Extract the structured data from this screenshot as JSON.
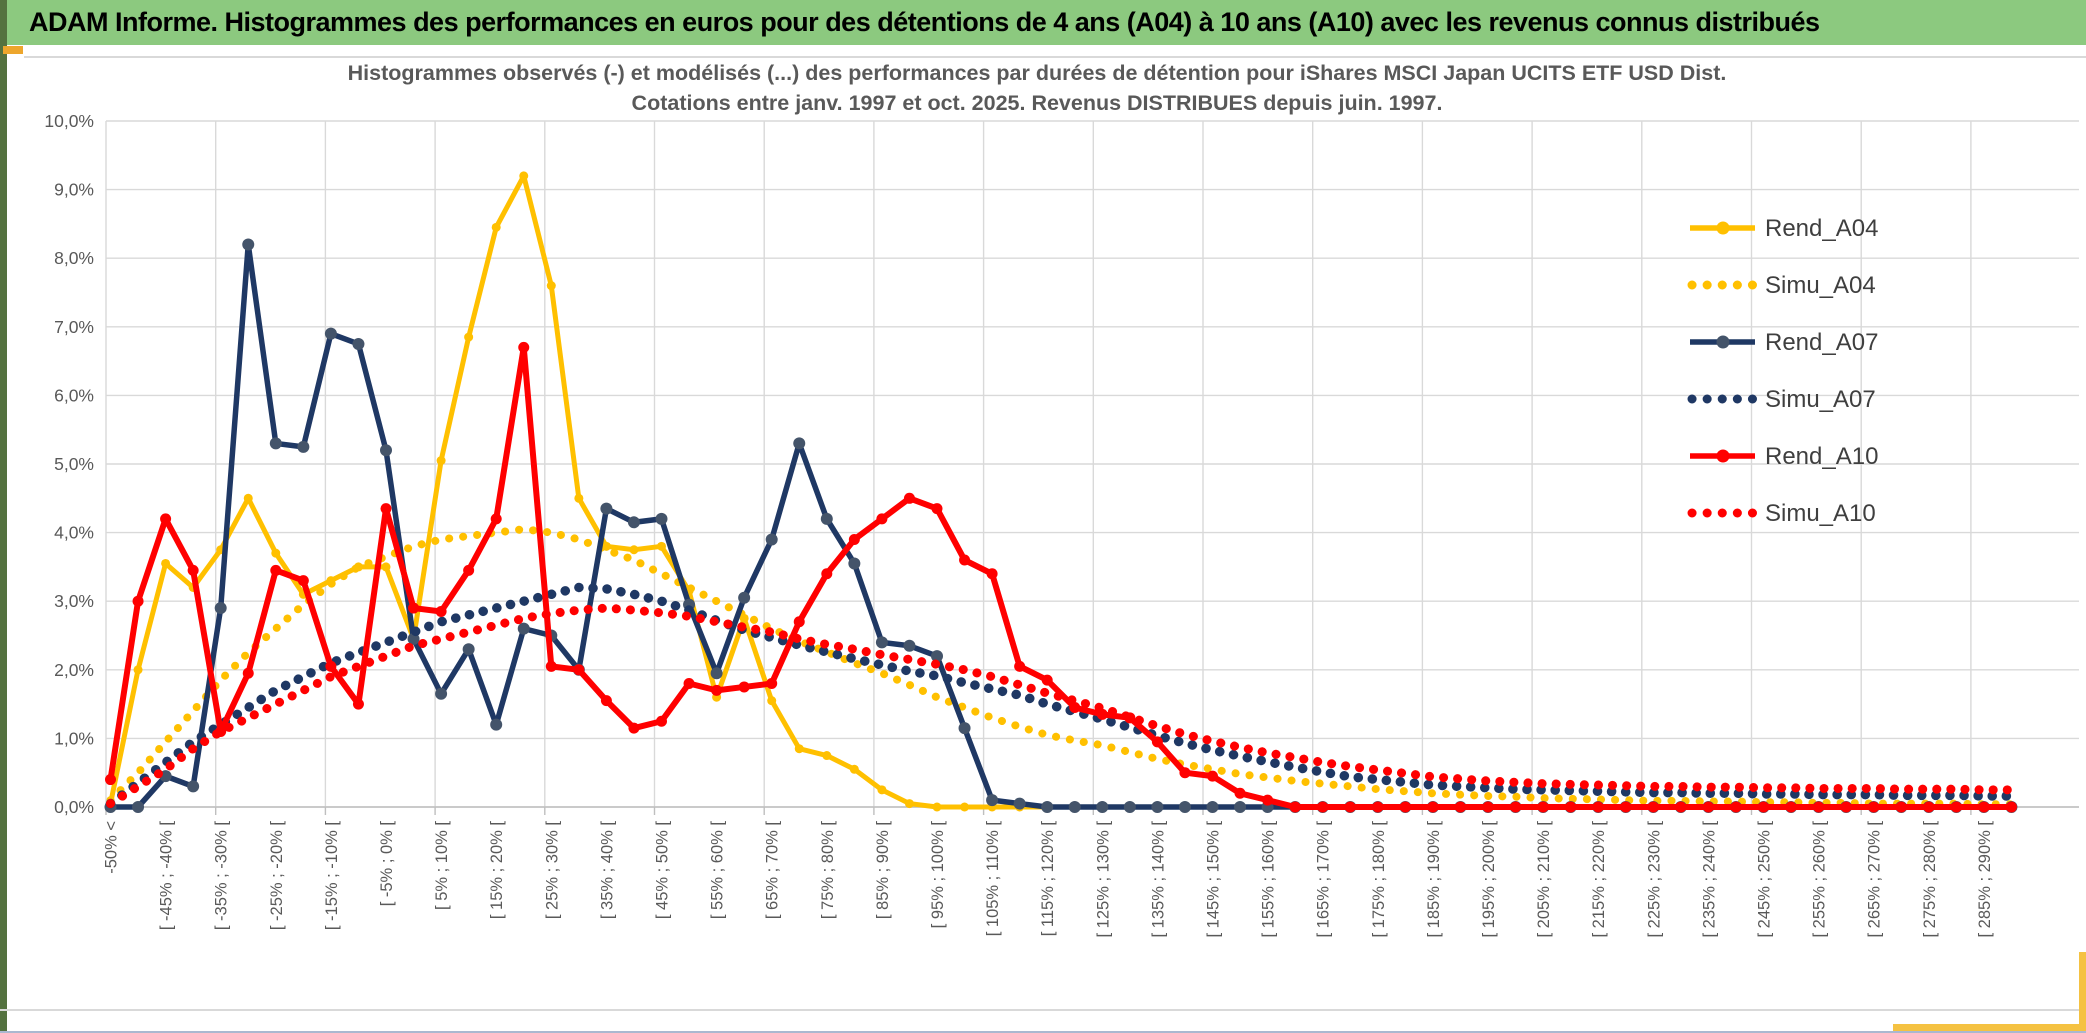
{
  "banner": {
    "title": "ADAM Informe. Histogrammes des performances en euros pour des détentions de 4 ans (A04) à 10 ans (A10) avec les revenus connus distribués"
  },
  "chart_data": {
    "type": "line",
    "title_line1": "Histogrammes observés (-) et modélisés (...) des performances par durées de détention pour iShares MSCI Japan UCITS ETF USD Dist.",
    "title_line2": "Cotations entre janv. 1997 et oct. 2025. Revenus DISTRIBUES depuis juin. 1997.",
    "ylabel": "",
    "xlabel": "",
    "ylim": [
      0,
      10
    ],
    "y_tick_labels": [
      "10,0%",
      "9,0%",
      "8,0%",
      "7,0%",
      "6,0%",
      "5,0%",
      "4,0%",
      "3,0%",
      "2,0%",
      "1,0%",
      "0,0%"
    ],
    "grid": true,
    "legend_position": "right",
    "categories": [
      "-50% <",
      "",
      "[ -45% ; -40% [",
      "",
      "[ -35% ; -30% [",
      "",
      "[ -25% ; -20% [",
      "",
      "[ -15% ; -10% [",
      "",
      "[ -5% ; 0% [",
      "",
      "[ 5% ; 10% [",
      "",
      "[ 15% ; 20% [",
      "",
      "[ 25% ; 30% [",
      "",
      "[ 35% ; 40% [",
      "",
      "[ 45% ; 50% [",
      "",
      "[ 55% ; 60% [",
      "",
      "[ 65% ; 70% [",
      "",
      "[ 75% ; 80% [",
      "",
      "[ 85% ; 90% [",
      "",
      "[ 95% ; 100% [",
      "",
      "[ 105% ; 110% [",
      "",
      "[ 115% ; 120% [",
      "",
      "[ 125% ; 130% [",
      "",
      "[ 135% ; 140% [",
      "",
      "[ 145% ; 150% [",
      "",
      "[ 155% ; 160% [",
      "",
      "[ 165% ; 170% [",
      "",
      "[ 175% ; 180% [",
      "",
      "[ 185% ; 190% [",
      "",
      "[ 195% ; 200% [",
      "",
      "[ 205% ; 210% [",
      "",
      "[ 215% ; 220% [",
      "",
      "[ 225% ; 230% [",
      "",
      "[ 235% ; 240% [",
      "",
      "[ 245% ; 250% [",
      "",
      "[ 255% ; 260% [",
      "",
      "[ 265% ; 270% [",
      "",
      "[ 275% ; 280% [",
      "",
      "[ 285% ; 290% [",
      ""
    ],
    "series": [
      {
        "name": "Rend_A04",
        "style": "solid",
        "color": "#FFC000",
        "marker_color": "#FFC000",
        "line_width": 5,
        "marker_r": 4.5,
        "values": [
          0.05,
          2,
          3.55,
          3.2,
          3.75,
          4.5,
          3.7,
          3.1,
          3.3,
          3.5,
          3.5,
          2.45,
          5.05,
          6.85,
          8.45,
          9.2,
          7.6,
          4.5,
          3.8,
          3.75,
          3.8,
          3.15,
          1.6,
          2.75,
          1.55,
          0.85,
          0.75,
          0.55,
          0.25,
          0.05,
          0,
          0,
          0,
          0,
          0,
          0,
          0,
          0,
          0,
          0,
          0,
          0,
          0,
          0,
          0,
          0,
          0,
          0,
          0,
          0,
          0,
          0,
          0,
          0,
          0,
          0,
          0,
          0,
          0,
          0,
          0,
          0,
          0,
          0,
          0,
          0,
          0,
          0,
          0,
          0
        ]
      },
      {
        "name": "Simu_A04",
        "style": "dotted",
        "color": "#FFC000",
        "dot_width": 8,
        "values": [
          0.1,
          0.5,
          0.95,
          1.4,
          1.85,
          2.25,
          2.6,
          2.95,
          3.25,
          3.5,
          3.65,
          3.8,
          3.9,
          3.95,
          4,
          4.05,
          4,
          3.9,
          3.75,
          3.6,
          3.4,
          3.2,
          3,
          2.8,
          2.6,
          2.42,
          2.26,
          2.1,
          1.95,
          1.78,
          1.6,
          1.45,
          1.3,
          1.17,
          1.05,
          0.97,
          0.9,
          0.8,
          0.7,
          0.62,
          0.55,
          0.48,
          0.43,
          0.38,
          0.34,
          0.3,
          0.26,
          0.23,
          0.2,
          0.18,
          0.16,
          0.15,
          0.13,
          0.12,
          0.11,
          0.1,
          0.09,
          0.09,
          0.08,
          0.08,
          0.07,
          0.07,
          0.06,
          0.06,
          0.05,
          0.05,
          0.05,
          0.05,
          0.04,
          0.04
        ]
      },
      {
        "name": "Rend_A07",
        "style": "solid",
        "color": "#1F3864",
        "marker_color": "#44546A",
        "line_width": 5.5,
        "marker_r": 6,
        "values": [
          0,
          0,
          0.45,
          0.3,
          2.9,
          8.2,
          5.3,
          5.25,
          6.9,
          6.75,
          5.2,
          2.45,
          1.65,
          2.3,
          1.2,
          2.6,
          2.5,
          2,
          4.35,
          4.15,
          4.2,
          2.95,
          1.95,
          3.05,
          3.9,
          5.3,
          4.2,
          3.55,
          2.4,
          2.35,
          2.2,
          1.15,
          0.1,
          0.05,
          0,
          0,
          0,
          0,
          0,
          0,
          0,
          0,
          0,
          0,
          0,
          0,
          0,
          0,
          0,
          0,
          0,
          0,
          0,
          0,
          0,
          0,
          0,
          0,
          0,
          0,
          0,
          0,
          0,
          0,
          0,
          0,
          0,
          0,
          0,
          0
        ]
      },
      {
        "name": "Simu_A07",
        "style": "dotted",
        "color": "#1F3864",
        "dot_width": 9.5,
        "values": [
          0.05,
          0.35,
          0.65,
          0.95,
          1.2,
          1.45,
          1.7,
          1.9,
          2.1,
          2.25,
          2.4,
          2.55,
          2.7,
          2.8,
          2.9,
          3,
          3.1,
          3.2,
          3.18,
          3.1,
          3,
          2.87,
          2.72,
          2.58,
          2.47,
          2.36,
          2.26,
          2.16,
          2.07,
          1.98,
          1.91,
          1.81,
          1.72,
          1.63,
          1.5,
          1.39,
          1.28,
          1.16,
          1.04,
          0.93,
          0.83,
          0.74,
          0.66,
          0.58,
          0.51,
          0.44,
          0.4,
          0.36,
          0.32,
          0.3,
          0.28,
          0.26,
          0.25,
          0.24,
          0.23,
          0.22,
          0.21,
          0.21,
          0.2,
          0.2,
          0.19,
          0.19,
          0.18,
          0.18,
          0.18,
          0.17,
          0.17,
          0.17,
          0.16,
          0.16
        ]
      },
      {
        "name": "Rend_A10",
        "style": "solid",
        "color": "#FF0000",
        "marker_color": "#FF0000",
        "line_width": 6,
        "marker_r": 5.5,
        "values": [
          0.4,
          3,
          4.2,
          3.45,
          1.1,
          1.95,
          3.45,
          3.3,
          2.05,
          1.5,
          4.35,
          2.9,
          2.85,
          3.45,
          4.2,
          6.7,
          2.05,
          2,
          1.55,
          1.15,
          1.25,
          1.8,
          1.7,
          1.75,
          1.8,
          2.7,
          3.4,
          3.9,
          4.2,
          4.5,
          4.35,
          3.6,
          3.4,
          2.05,
          1.85,
          1.45,
          1.35,
          1.3,
          0.95,
          0.5,
          0.45,
          0.2,
          0.1,
          0,
          0,
          0,
          0,
          0,
          0,
          0,
          0,
          0,
          0,
          0,
          0,
          0,
          0,
          0,
          0,
          0,
          0,
          0,
          0,
          0,
          0,
          0,
          0,
          0,
          0,
          0
        ]
      },
      {
        "name": "Simu_A10",
        "style": "dotted",
        "color": "#FF0000",
        "dot_width": 9,
        "values": [
          0.05,
          0.3,
          0.55,
          0.85,
          1.1,
          1.3,
          1.5,
          1.7,
          1.9,
          2.05,
          2.2,
          2.35,
          2.45,
          2.55,
          2.65,
          2.75,
          2.82,
          2.87,
          2.9,
          2.87,
          2.83,
          2.78,
          2.7,
          2.62,
          2.55,
          2.45,
          2.37,
          2.3,
          2.22,
          2.15,
          2.08,
          2,
          1.9,
          1.78,
          1.66,
          1.55,
          1.44,
          1.31,
          1.18,
          1.06,
          0.96,
          0.87,
          0.79,
          0.72,
          0.65,
          0.59,
          0.54,
          0.49,
          0.44,
          0.41,
          0.38,
          0.36,
          0.34,
          0.33,
          0.32,
          0.31,
          0.3,
          0.3,
          0.29,
          0.29,
          0.28,
          0.28,
          0.27,
          0.27,
          0.27,
          0.26,
          0.26,
          0.26,
          0.25,
          0.25
        ]
      }
    ],
    "colors": {
      "grid": "#D9D9D9",
      "axis_line": "#BFBFBF",
      "axis_text": "#595959",
      "title_text": "#595959",
      "legend_text": "#3F3F3F",
      "banner_green": "#8CC97F",
      "accent_orange": "#EDA62D",
      "accent_yellow": "#F5C242"
    }
  }
}
